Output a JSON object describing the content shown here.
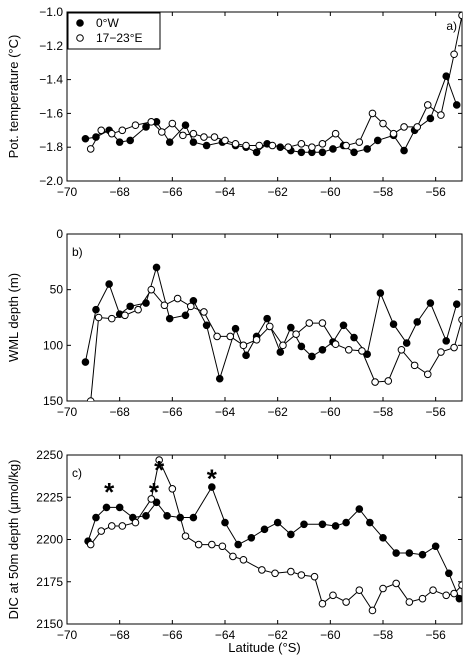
{
  "chart_data": [
    {
      "type": "line",
      "panel_label": "a)",
      "ylabel": "Pot. temperature (°C)",
      "xlim": [
        -70,
        -55
      ],
      "ylim": [
        -2.0,
        -1.0
      ],
      "y_inverted": false,
      "xticks": [
        -70,
        -68,
        -66,
        -64,
        -62,
        -60,
        -58,
        -56
      ],
      "xtick_labels": [
        "−70",
        "−68",
        "−66",
        "−64",
        "−62",
        "−60",
        "−58",
        "−56"
      ],
      "yticks": [
        -2.0,
        -1.8,
        -1.6,
        -1.4,
        -1.2,
        -1.0
      ],
      "ytick_labels": [
        "−2.0",
        "−1.8",
        "−1.6",
        "−1.4",
        "−1.2",
        "−1.0"
      ],
      "legend": {
        "placement": "top-left",
        "entries": [
          "0°W",
          "17−23°E"
        ]
      },
      "series": [
        {
          "name": "0°W",
          "marker": "filled",
          "x": [
            -69.3,
            -68.9,
            -68.4,
            -68.0,
            -67.6,
            -67.0,
            -66.6,
            -66.1,
            -65.5,
            -65.2,
            -64.7,
            -64.1,
            -63.6,
            -63.2,
            -62.8,
            -62.4,
            -61.9,
            -61.5,
            -61.1,
            -60.7,
            -60.3,
            -59.9,
            -59.5,
            -59.1,
            -58.6,
            -58.2,
            -57.6,
            -57.2,
            -56.8,
            -56.2,
            -55.6,
            -55.2
          ],
          "y": [
            -1.75,
            -1.74,
            -1.7,
            -1.77,
            -1.76,
            -1.68,
            -1.65,
            -1.77,
            -1.67,
            -1.77,
            -1.79,
            -1.77,
            -1.79,
            -1.8,
            -1.83,
            -1.78,
            -1.8,
            -1.82,
            -1.83,
            -1.83,
            -1.83,
            -1.81,
            -1.79,
            -1.83,
            -1.81,
            -1.76,
            -1.73,
            -1.82,
            -1.7,
            -1.63,
            -1.38,
            -1.55
          ]
        },
        {
          "name": "17−23°E",
          "marker": "open",
          "x": [
            -69.1,
            -68.7,
            -68.3,
            -67.9,
            -67.4,
            -66.8,
            -66.4,
            -66.0,
            -65.6,
            -65.2,
            -64.8,
            -64.4,
            -64.0,
            -63.6,
            -63.2,
            -62.7,
            -62.2,
            -61.6,
            -61.1,
            -60.7,
            -60.3,
            -59.8,
            -59.4,
            -58.9,
            -58.4,
            -58.0,
            -57.6,
            -57.2,
            -56.7,
            -56.3,
            -55.8,
            -55.3,
            -55.0
          ],
          "y": [
            -1.81,
            -1.7,
            -1.72,
            -1.7,
            -1.67,
            -1.65,
            -1.71,
            -1.66,
            -1.73,
            -1.72,
            -1.74,
            -1.74,
            -1.76,
            -1.78,
            -1.79,
            -1.79,
            -1.79,
            -1.8,
            -1.78,
            -1.8,
            -1.78,
            -1.72,
            -1.79,
            -1.77,
            -1.6,
            -1.66,
            -1.72,
            -1.68,
            -1.68,
            -1.55,
            -1.61,
            -1.25,
            -1.02
          ]
        }
      ]
    },
    {
      "type": "line",
      "panel_label": "b)",
      "ylabel": "WML depth (m)",
      "xlim": [
        -70,
        -55
      ],
      "ylim": [
        0,
        150
      ],
      "y_inverted": true,
      "xticks": [
        -70,
        -68,
        -66,
        -64,
        -62,
        -60,
        -58,
        -56
      ],
      "xtick_labels": [
        "−70",
        "−68",
        "−66",
        "−64",
        "−62",
        "−60",
        "−58",
        "−56"
      ],
      "yticks": [
        0,
        50,
        100,
        150
      ],
      "ytick_labels": [
        "0",
        "50",
        "100",
        "150"
      ],
      "series": [
        {
          "name": "0°W",
          "marker": "filled",
          "x": [
            -69.3,
            -68.9,
            -68.4,
            -68.0,
            -67.6,
            -67.0,
            -66.6,
            -66.1,
            -65.5,
            -65.2,
            -64.7,
            -64.2,
            -63.6,
            -63.2,
            -62.8,
            -62.4,
            -61.9,
            -61.5,
            -61.1,
            -60.7,
            -60.3,
            -59.9,
            -59.5,
            -59.1,
            -58.6,
            -58.1,
            -57.6,
            -57.1,
            -56.7,
            -56.2,
            -55.6,
            -55.2
          ],
          "y": [
            115,
            68,
            45,
            72,
            65,
            62,
            30,
            76,
            73,
            60,
            82,
            130,
            85,
            109,
            92,
            76,
            106,
            84,
            101,
            110,
            104,
            97,
            82,
            93,
            108,
            53,
            81,
            98,
            79,
            62,
            96,
            63
          ]
        },
        {
          "name": "17−23°E",
          "marker": "open",
          "x": [
            -69.1,
            -68.8,
            -68.3,
            -67.8,
            -67.3,
            -66.8,
            -66.3,
            -65.8,
            -65.3,
            -64.8,
            -64.3,
            -63.8,
            -63.3,
            -62.8,
            -62.3,
            -61.8,
            -61.3,
            -60.8,
            -60.3,
            -59.8,
            -59.3,
            -58.8,
            -58.3,
            -57.8,
            -57.3,
            -56.8,
            -56.3,
            -55.8,
            -55.3,
            -55.0
          ],
          "y": [
            150,
            75,
            76,
            73,
            68,
            50,
            64,
            58,
            65,
            70,
            92,
            92,
            100,
            95,
            83,
            100,
            90,
            80,
            80,
            99,
            104,
            105,
            133,
            132,
            104,
            118,
            126,
            106,
            102,
            77
          ]
        }
      ]
    },
    {
      "type": "line",
      "panel_label": "c)",
      "ylabel": "DIC at 50m depth (μmol/kg)",
      "xlabel": "Latitude (°S)",
      "xlim": [
        -70,
        -55
      ],
      "ylim": [
        2150,
        2250
      ],
      "y_inverted": false,
      "xticks": [
        -70,
        -68,
        -66,
        -64,
        -62,
        -60,
        -58,
        -56
      ],
      "xtick_labels": [
        "−70",
        "−68",
        "−66",
        "−64",
        "−62",
        "−60",
        "−58",
        "−56"
      ],
      "yticks": [
        2150,
        2175,
        2200,
        2225,
        2250
      ],
      "ytick_labels": [
        "2150",
        "2175",
        "2200",
        "2225",
        "2250"
      ],
      "annotations": [
        {
          "text": "*",
          "x": -68.4,
          "y": 2230
        },
        {
          "text": "*",
          "x": -66.5,
          "y": 2243
        },
        {
          "text": "*",
          "x": -66.7,
          "y": 2230
        },
        {
          "text": "*",
          "x": -64.5,
          "y": 2238
        }
      ],
      "series": [
        {
          "name": "0°W",
          "marker": "filled",
          "x": [
            -69.2,
            -68.9,
            -68.5,
            -68.0,
            -67.5,
            -67.0,
            -66.6,
            -66.2,
            -65.7,
            -65.2,
            -64.5,
            -64.0,
            -63.5,
            -63.0,
            -62.5,
            -62.0,
            -61.5,
            -61.0,
            -60.3,
            -59.8,
            -59.4,
            -58.9,
            -58.5,
            -58.0,
            -57.5,
            -57.0,
            -56.5,
            -56.0,
            -55.5,
            -55.1
          ],
          "y": [
            2199,
            2213,
            2219,
            2219,
            2213,
            2214,
            2222,
            2214,
            2213,
            2213,
            2231,
            2210,
            2197,
            2201,
            2206,
            2210,
            2203,
            2209,
            2209,
            2208,
            2210,
            2218,
            2210,
            2201,
            2192,
            2192,
            2191,
            2196,
            2180,
            2165
          ]
        },
        {
          "name": "17−23°E",
          "marker": "open",
          "x": [
            -69.1,
            -68.7,
            -68.3,
            -67.9,
            -67.4,
            -66.8,
            -66.5,
            -66.0,
            -65.5,
            -65.0,
            -64.5,
            -64.1,
            -63.7,
            -63.3,
            -62.6,
            -62.1,
            -61.5,
            -61.1,
            -60.6,
            -60.3,
            -59.9,
            -59.4,
            -58.9,
            -58.4,
            -58.0,
            -57.5,
            -57.0,
            -56.5,
            -56.1,
            -55.6,
            -55.3,
            -55.0
          ],
          "y": [
            2197,
            2205,
            2208,
            2208,
            2210,
            2224,
            2247,
            2230,
            2202,
            2197,
            2197,
            2196,
            2190,
            2188,
            2182,
            2180,
            2181,
            2179,
            2178,
            2162,
            2167,
            2163,
            2170,
            2158,
            2171,
            2174,
            2163,
            2165,
            2170,
            2167,
            2168,
            2173
          ]
        }
      ]
    }
  ]
}
